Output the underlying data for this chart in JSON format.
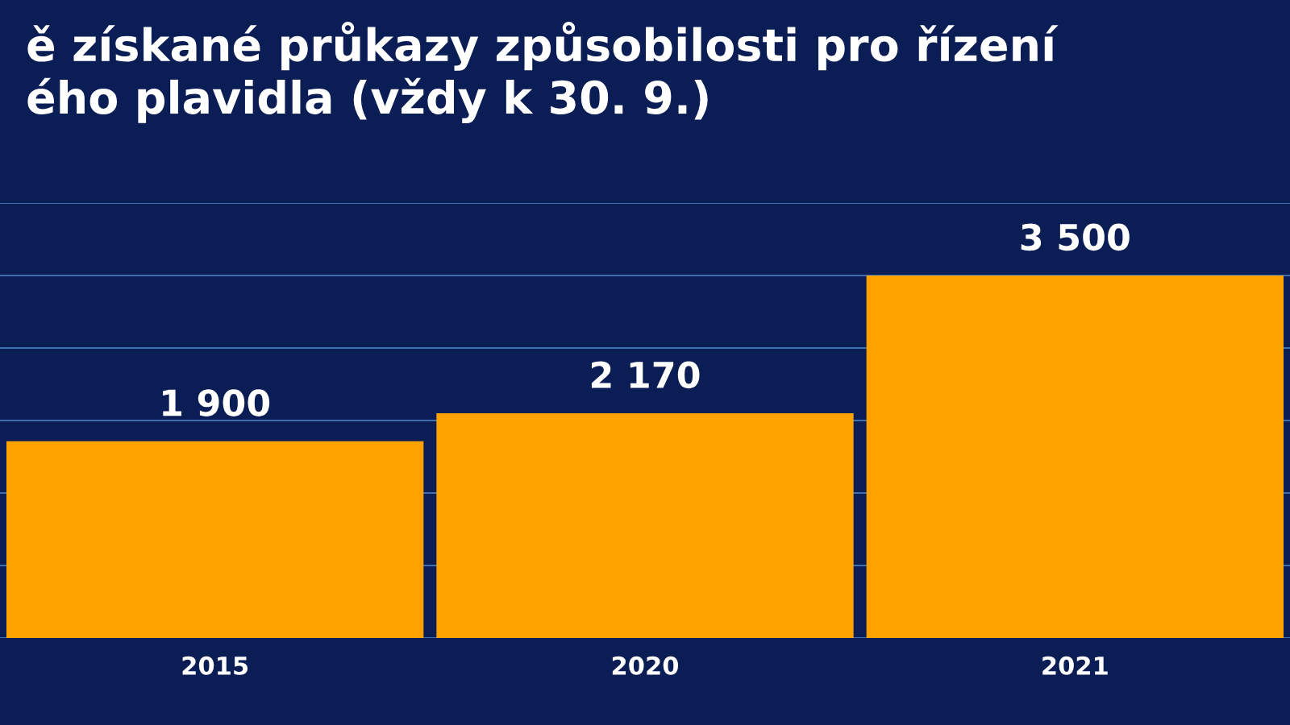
{
  "chart_data": {
    "type": "bar",
    "title": "ě získané průkazy způsobilosti pro řízení\ného plavidla (vždy k 30. 9.)",
    "categories": [
      "2015",
      "2020",
      "2021"
    ],
    "values": [
      1900,
      2170,
      3500
    ],
    "color": "#ffa200",
    "ylim": [
      0,
      4200
    ],
    "yticks": [
      {
        "value": 0,
        "label": null
      },
      {
        "value": 700,
        "label": null
      },
      {
        "value": 1400,
        "label": null
      },
      {
        "value": 2100,
        "label": null
      },
      {
        "value": 2800,
        "label": null
      },
      {
        "value": 3500,
        "label": null
      },
      {
        "value": 4200,
        "label": null
      }
    ],
    "data_labels": true,
    "grid": "y"
  }
}
